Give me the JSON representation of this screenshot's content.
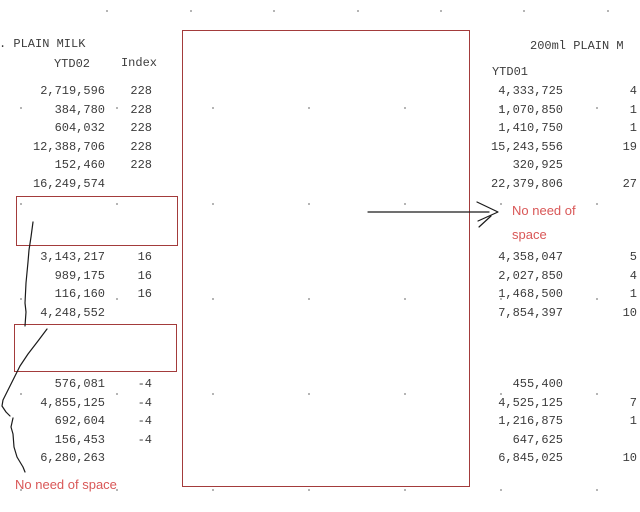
{
  "colors": {
    "background": "#ffffff",
    "text": "#3c3c3c",
    "box_red": "#a33b3b",
    "annotation_red": "#d95757",
    "ink_black": "#1a1a1a",
    "dot_gray": "#b5b5b5"
  },
  "left_table": {
    "title": ". PLAIN MILK",
    "value_header": "YTD02",
    "index_header": "Index",
    "groups": [
      {
        "rows": [
          {
            "value": "2,719,596",
            "index": "228"
          },
          {
            "value": "384,780",
            "index": "228"
          },
          {
            "value": "604,032",
            "index": "228"
          },
          {
            "value": "12,388,706",
            "index": "228"
          },
          {
            "value": "152,460",
            "index": "228"
          },
          {
            "value": "16,249,574",
            "index": ""
          }
        ]
      },
      {
        "rows": [
          {
            "value": "3,143,217",
            "index": "16"
          },
          {
            "value": "989,175",
            "index": "16"
          },
          {
            "value": "116,160",
            "index": "16"
          },
          {
            "value": "4,248,552",
            "index": ""
          }
        ]
      },
      {
        "rows": [
          {
            "value": "576,081",
            "index": "-4"
          },
          {
            "value": "4,855,125",
            "index": "-4"
          },
          {
            "value": "692,604",
            "index": "-4"
          },
          {
            "value": "156,453",
            "index": "-4"
          },
          {
            "value": "6,280,263",
            "index": ""
          }
        ]
      }
    ]
  },
  "right_table": {
    "title": "200ml PLAIN M",
    "value_header": "YTD01",
    "groups": [
      {
        "rows": [
          {
            "value": "4,333,725",
            "index": "4"
          },
          {
            "value": "1,070,850",
            "index": "1"
          },
          {
            "value": "1,410,750",
            "index": "1"
          },
          {
            "value": "15,243,556",
            "index": "19"
          },
          {
            "value": "320,925",
            "index": ""
          },
          {
            "value": "22,379,806",
            "index": "27"
          }
        ]
      },
      {
        "rows": [
          {
            "value": "4,358,047",
            "index": "5"
          },
          {
            "value": "2,027,850",
            "index": "4"
          },
          {
            "value": "1,468,500",
            "index": "1"
          },
          {
            "value": "7,854,397",
            "index": "10"
          }
        ]
      },
      {
        "rows": [
          {
            "value": "455,400",
            "index": ""
          },
          {
            "value": "4,525,125",
            "index": "7"
          },
          {
            "value": "1,216,875",
            "index": "1"
          },
          {
            "value": "647,625",
            "index": ""
          },
          {
            "value": "6,845,025",
            "index": "10"
          }
        ]
      }
    ]
  },
  "annotations": {
    "note_right_line1": "No need of",
    "note_right_line2": "space",
    "note_bottom_left": "No need of space"
  }
}
